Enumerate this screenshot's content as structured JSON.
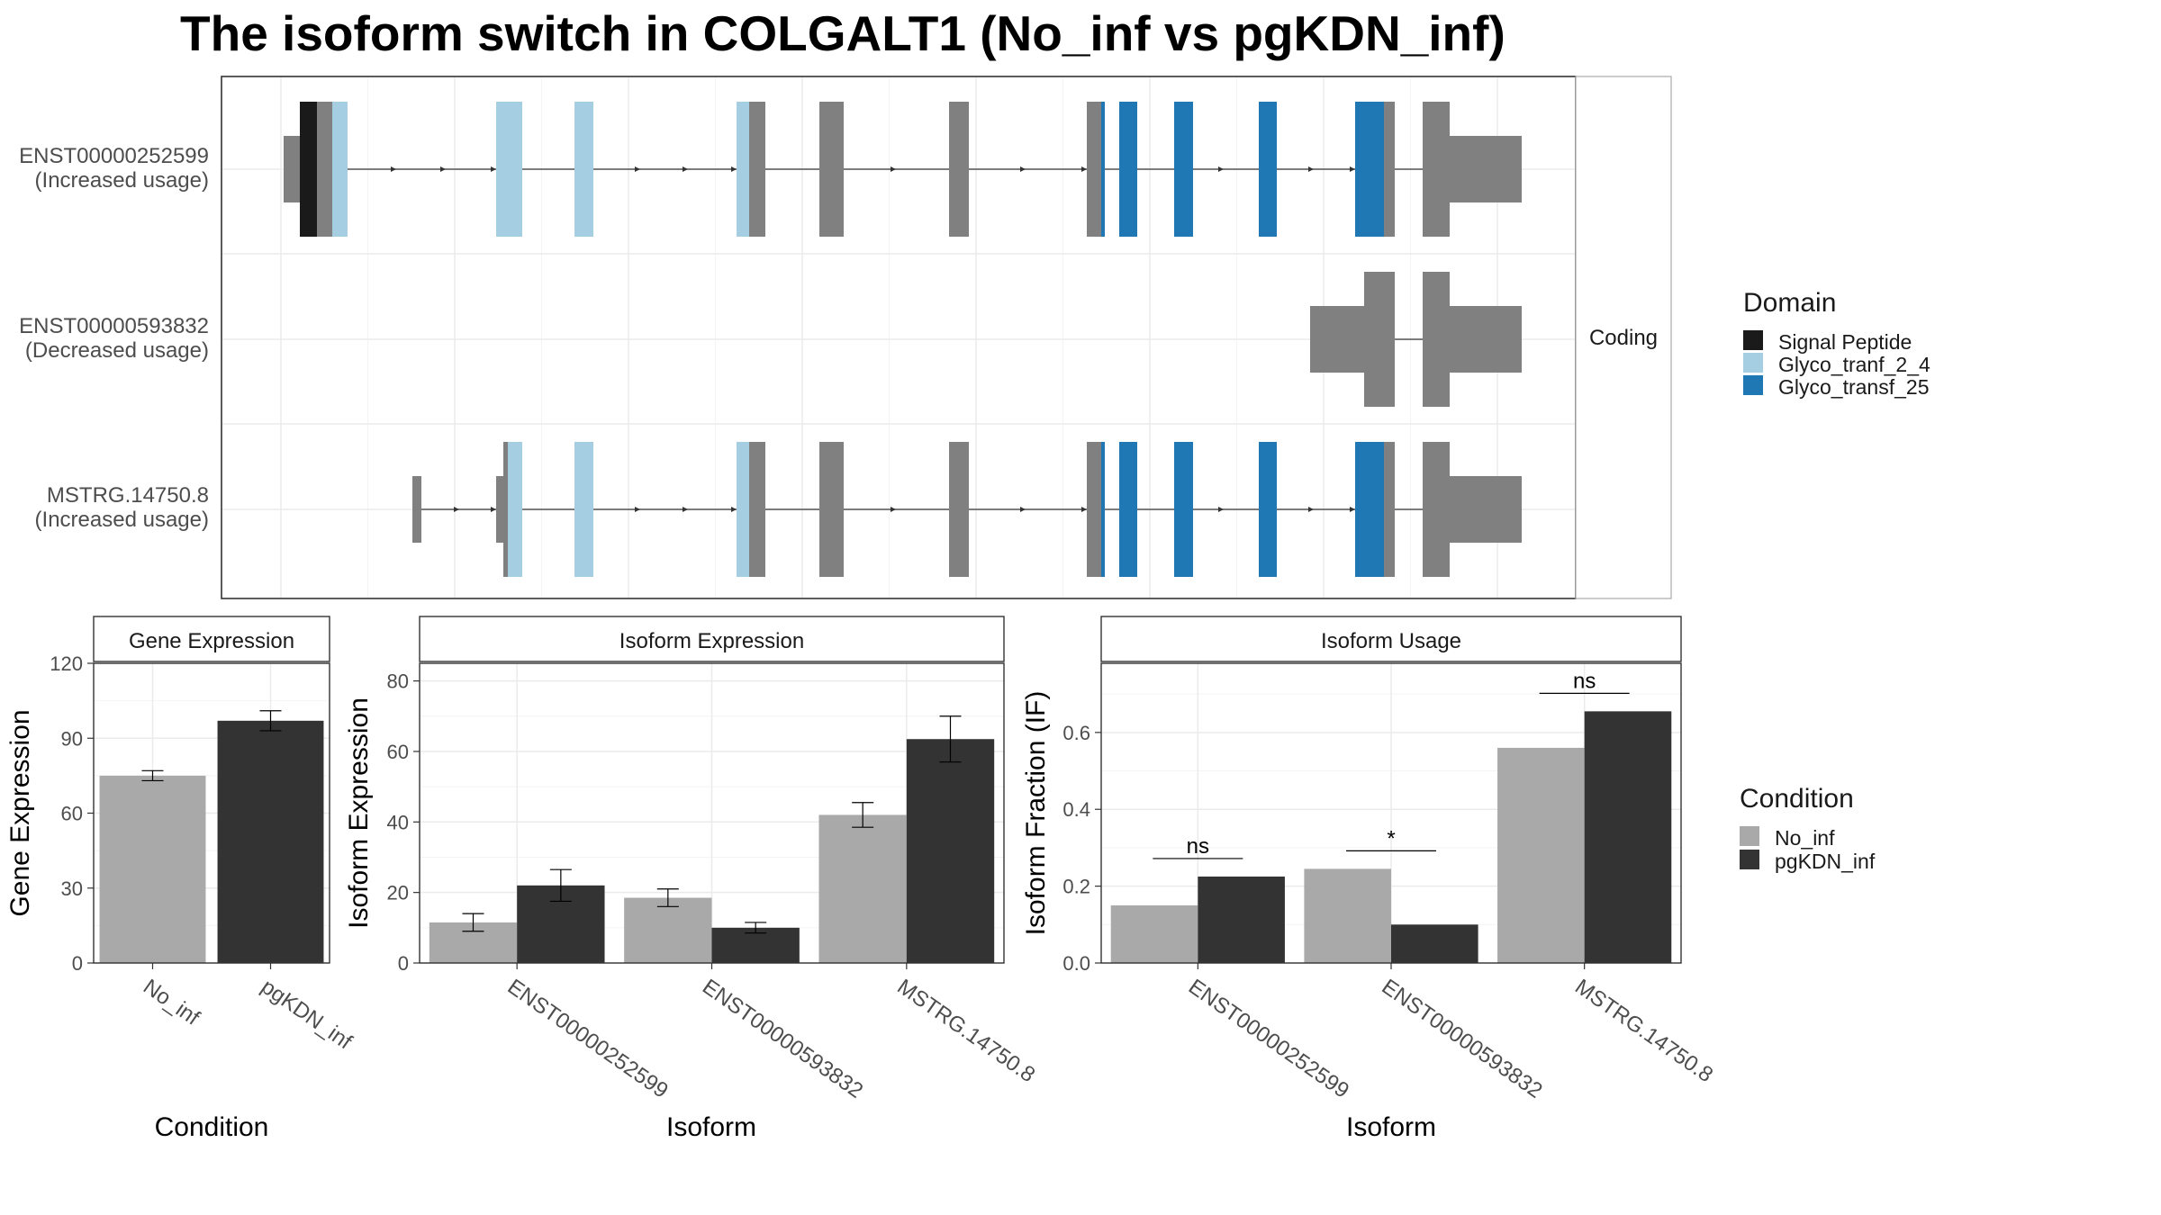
{
  "title": "The isoform switch in COLGALT1 (No_inf vs pgKDN_inf)",
  "structure": {
    "facet_label": "Coding",
    "isoforms": [
      {
        "id": "ENST00000252599",
        "status": "(Increased usage)"
      },
      {
        "id": "ENST00000593832",
        "status": "(Decreased usage)"
      },
      {
        "id": "MSTRG.14750.8",
        "status": "(Increased usage)"
      }
    ]
  },
  "domain_legend": {
    "title": "Domain",
    "items": [
      {
        "label": "Signal Peptide",
        "color": "#1a1a1a"
      },
      {
        "label": "Glyco_tranf_2_4",
        "color": "#a6cee3"
      },
      {
        "label": "Glyco_transf_25",
        "color": "#1f78b4"
      }
    ]
  },
  "condition_legend": {
    "title": "Condition",
    "items": [
      {
        "label": "No_inf",
        "color": "#a9a9a9"
      },
      {
        "label": "pgKDN_inf",
        "color": "#333333"
      }
    ]
  },
  "chart_data": [
    {
      "type": "bar",
      "strip": "Gene Expression",
      "xlabel": "Condition",
      "ylabel": "Gene Expression",
      "categories": [
        "No_inf",
        "pgKDN_inf"
      ],
      "values": [
        75,
        97
      ],
      "errors": [
        [
          73,
          77
        ],
        [
          93,
          101
        ]
      ],
      "ylim": [
        0,
        120
      ],
      "yticks": [
        0,
        30,
        60,
        90,
        120
      ]
    },
    {
      "type": "bar",
      "strip": "Isoform Expression",
      "xlabel": "Isoform",
      "ylabel": "Isoform Expression",
      "categories": [
        "ENST00000252599",
        "ENST00000593832",
        "MSTRG.14750.8"
      ],
      "series": [
        {
          "name": "No_inf",
          "values": [
            11.5,
            18.5,
            42
          ],
          "errors": [
            [
              9,
              14
            ],
            [
              16,
              21
            ],
            [
              38.5,
              45.5
            ]
          ]
        },
        {
          "name": "pgKDN_inf",
          "values": [
            22,
            10,
            63.5
          ],
          "errors": [
            [
              17.5,
              26.5
            ],
            [
              8.5,
              11.5
            ],
            [
              57,
              70
            ]
          ]
        }
      ],
      "ylim": [
        0,
        85
      ],
      "yticks": [
        0,
        20,
        40,
        60,
        80
      ]
    },
    {
      "type": "bar",
      "strip": "Isoform Usage",
      "xlabel": "Isoform",
      "ylabel": "Isoform Fraction (IF)",
      "categories": [
        "ENST00000252599",
        "ENST00000593832",
        "MSTRG.14750.8"
      ],
      "series": [
        {
          "name": "No_inf",
          "values": [
            0.15,
            0.245,
            0.56
          ]
        },
        {
          "name": "pgKDN_inf",
          "values": [
            0.225,
            0.1,
            0.655
          ]
        }
      ],
      "significance": [
        "ns",
        "*",
        "ns"
      ],
      "ylim": [
        0,
        0.78
      ],
      "yticks": [
        "0.0",
        "0.2",
        "0.4",
        "0.6"
      ]
    }
  ]
}
